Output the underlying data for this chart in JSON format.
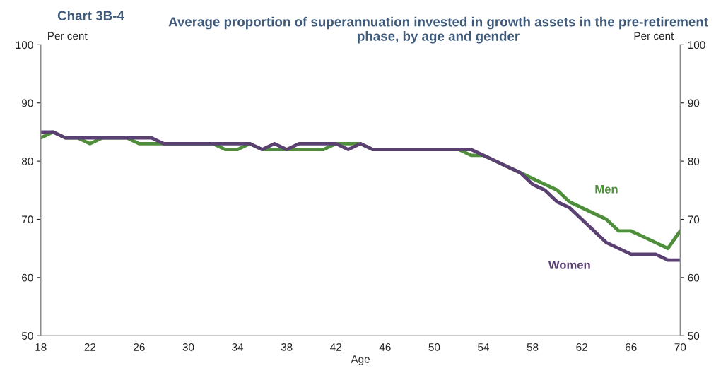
{
  "chart_data": {
    "type": "line",
    "title": "Chart 3B-4",
    "subtitle": "Average proportion of superannuation invested in growth assets in the pre-retirement phase, by age and gender",
    "xlabel": "Age",
    "ylabel": "Per cent",
    "y2label": "Per cent",
    "x": [
      18,
      19,
      20,
      21,
      22,
      23,
      24,
      25,
      26,
      27,
      28,
      29,
      30,
      31,
      32,
      33,
      34,
      35,
      36,
      37,
      38,
      39,
      40,
      41,
      42,
      43,
      44,
      45,
      46,
      47,
      48,
      49,
      50,
      51,
      52,
      53,
      54,
      55,
      56,
      57,
      58,
      59,
      60,
      61,
      62,
      63,
      64,
      65,
      66,
      67,
      68,
      69,
      70
    ],
    "series": [
      {
        "name": "Men",
        "color": "#4f8f3c",
        "values": [
          84,
          85,
          84,
          84,
          83,
          84,
          84,
          84,
          83,
          83,
          83,
          83,
          83,
          83,
          83,
          82,
          82,
          83,
          82,
          82,
          82,
          82,
          82,
          82,
          83,
          83,
          83,
          82,
          82,
          82,
          82,
          82,
          82,
          82,
          82,
          81,
          81,
          80,
          79,
          78,
          77,
          76,
          75,
          73,
          72,
          71,
          70,
          68,
          68,
          67,
          66,
          65,
          68
        ]
      },
      {
        "name": "Women",
        "color": "#5a4172",
        "values": [
          85,
          85,
          84,
          84,
          84,
          84,
          84,
          84,
          84,
          84,
          83,
          83,
          83,
          83,
          83,
          83,
          83,
          83,
          82,
          83,
          82,
          83,
          83,
          83,
          83,
          82,
          83,
          82,
          82,
          82,
          82,
          82,
          82,
          82,
          82,
          82,
          81,
          80,
          79,
          78,
          76,
          75,
          73,
          72,
          70,
          68,
          66,
          65,
          64,
          64,
          64,
          63,
          63
        ]
      }
    ],
    "xlim": [
      18,
      70
    ],
    "xticks": [
      18,
      22,
      26,
      30,
      34,
      38,
      42,
      46,
      50,
      54,
      58,
      62,
      66,
      70
    ],
    "ylim": [
      50,
      100
    ],
    "yticks": [
      50,
      60,
      70,
      80,
      90,
      100
    ],
    "y2lim": [
      50,
      100
    ],
    "y2ticks": [
      50,
      60,
      70,
      80,
      90,
      100
    ],
    "grid": false,
    "legend": false,
    "line_style": "solid",
    "marker": "none"
  }
}
